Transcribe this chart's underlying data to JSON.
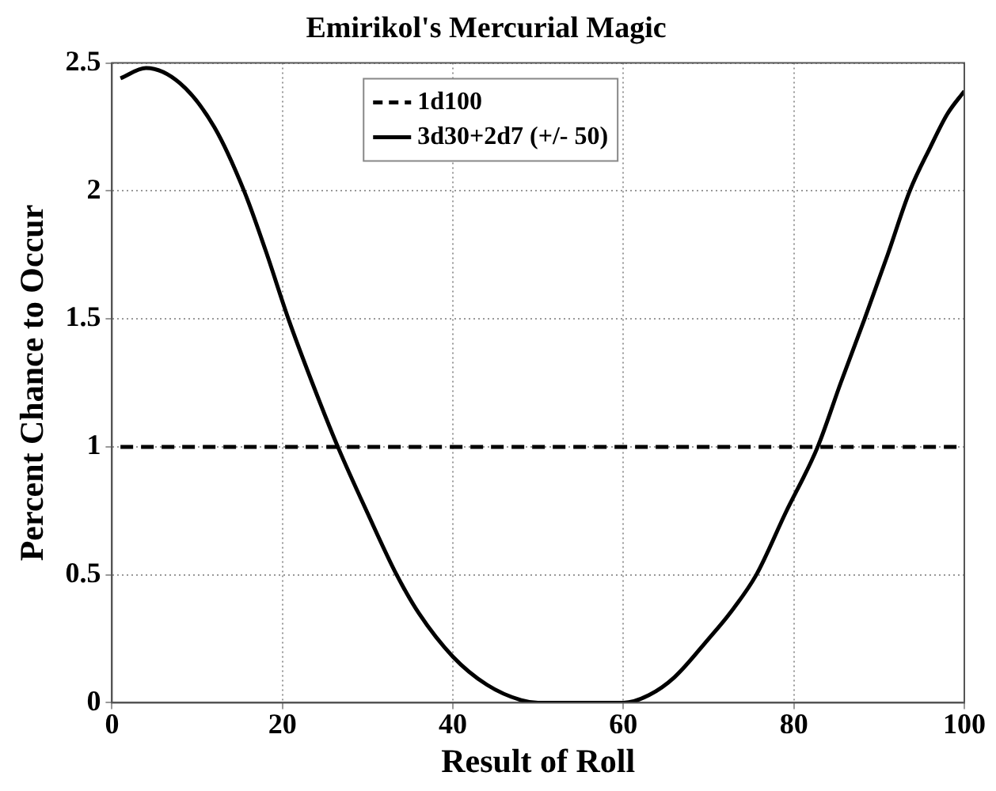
{
  "chart_data": {
    "type": "line",
    "title": "Emirikol's Mercurial Magic",
    "xlabel": "Result of Roll",
    "ylabel": "Percent Chance to Occur",
    "xlim": [
      0,
      100
    ],
    "xticks": [
      0,
      20,
      40,
      60,
      80,
      100
    ],
    "ylim": [
      0,
      2.5
    ],
    "yticks": [
      0,
      0.5,
      1,
      1.5,
      2,
      2.5
    ],
    "grid": true,
    "legend": "top",
    "marker": "none",
    "series": [
      {
        "name": "1d100",
        "color": "#000000",
        "line_style": "dashed",
        "x": [
          1,
          100
        ],
        "values": [
          1,
          1
        ]
      },
      {
        "name": "3d30+2d7 (+/- 50)",
        "color": "#000000",
        "line_style": "solid",
        "x": [
          1,
          4,
          8,
          12,
          15.5,
          18,
          20.7,
          23.5,
          26.5,
          30,
          33.4,
          36,
          40,
          44,
          48,
          50,
          55,
          60,
          63,
          66,
          70,
          72.5,
          75.6,
          79,
          82.8,
          85.5,
          88.3,
          91,
          93.6,
          96,
          98,
          100
        ],
        "values": [
          2.44,
          2.48,
          2.42,
          2.25,
          2.0,
          1.77,
          1.5,
          1.25,
          1.0,
          0.74,
          0.5,
          0.35,
          0.18,
          0.07,
          0.01,
          0,
          0,
          0,
          0.03,
          0.1,
          0.25,
          0.35,
          0.5,
          0.74,
          1.0,
          1.25,
          1.5,
          1.75,
          2.0,
          2.17,
          2.3,
          2.39
        ]
      }
    ]
  }
}
